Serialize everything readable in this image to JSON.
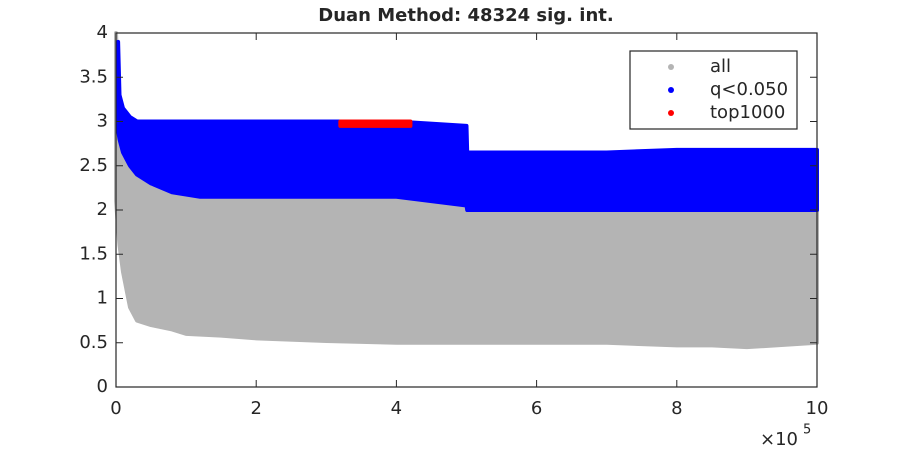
{
  "chart_data": {
    "type": "scatter",
    "title": "Duan Method: 48324 sig. int.",
    "xlim": [
      0,
      10
    ],
    "xticks": [
      0,
      2,
      4,
      6,
      8,
      10
    ],
    "x_multiplier": {
      "base": "×10",
      "exponent": "5"
    },
    "ylim": [
      0,
      4
    ],
    "yticks": [
      0,
      0.5,
      1,
      1.5,
      2,
      2.5,
      3,
      3.5,
      4
    ],
    "legend": "upper right",
    "series": [
      {
        "name": "all",
        "color": "#b4b4b4",
        "x": [
          0,
          0.05,
          0.1,
          0.2,
          0.3,
          0.5,
          0.8,
          1,
          1.5,
          2,
          3,
          4,
          5,
          6,
          7,
          8,
          8.5,
          9,
          10
        ],
        "upper": [
          4.0,
          3.0,
          2.7,
          2.5,
          2.35,
          2.25,
          2.2,
          2.2,
          2.2,
          2.2,
          2.2,
          2.2,
          2.1,
          2.05,
          2.0,
          2.0,
          2.0,
          2.0,
          2.0
        ],
        "lower": [
          2.1,
          1.6,
          1.3,
          0.9,
          0.75,
          0.7,
          0.65,
          0.6,
          0.58,
          0.55,
          0.52,
          0.5,
          0.5,
          0.5,
          0.5,
          0.47,
          0.47,
          0.45,
          0.5
        ]
      },
      {
        "name": "q<0.050",
        "color": "#0000ff",
        "x": [
          0.03,
          0.05,
          0.1,
          0.2,
          0.3,
          0.5,
          0.8,
          1.2,
          2,
          3,
          4,
          5,
          5.01,
          6,
          7,
          8,
          9,
          10
        ],
        "upper": [
          3.9,
          3.3,
          3.15,
          3.05,
          3.0,
          3.0,
          3.0,
          3.0,
          3.0,
          3.0,
          3.0,
          2.95,
          2.65,
          2.65,
          2.65,
          2.68,
          2.68,
          2.68
        ],
        "lower": [
          2.9,
          2.8,
          2.65,
          2.5,
          2.4,
          2.3,
          2.2,
          2.15,
          2.15,
          2.15,
          2.15,
          2.05,
          2.0,
          2.0,
          2.0,
          2.0,
          2.0,
          2.0
        ]
      },
      {
        "name": "top1000",
        "color": "#ff0000",
        "x": [
          3.2,
          4.2
        ],
        "upper": [
          3.0,
          3.0
        ],
        "lower": [
          2.95,
          2.95
        ]
      }
    ]
  }
}
